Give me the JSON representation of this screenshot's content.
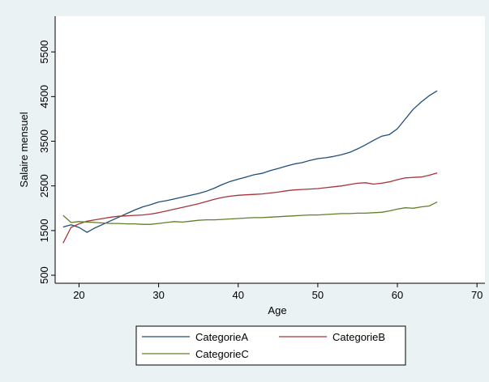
{
  "chart_data": {
    "type": "line",
    "title": "",
    "xlabel": "Age",
    "ylabel": "Salaire mensuel",
    "xlim": [
      17,
      71
    ],
    "ylim": [
      320,
      6300
    ],
    "xticks": [
      20,
      30,
      40,
      50,
      60,
      70
    ],
    "yticks": [
      500,
      1500,
      2500,
      3500,
      4500,
      5500
    ],
    "grid": false,
    "legend_position": "bottom",
    "colors": {
      "background": "#eaf2f3",
      "plot_background": "#ffffff",
      "axis": "#000000"
    },
    "series": [
      {
        "name": "CategorieA",
        "color": "#1f4e79",
        "x": [
          18,
          19,
          20,
          21,
          22,
          23,
          24,
          25,
          26,
          27,
          28,
          29,
          30,
          31,
          32,
          33,
          34,
          35,
          36,
          37,
          38,
          39,
          40,
          41,
          42,
          43,
          44,
          45,
          46,
          47,
          48,
          49,
          50,
          51,
          52,
          53,
          54,
          55,
          56,
          57,
          58,
          59,
          60,
          61,
          62,
          63,
          64,
          65
        ],
        "values": [
          1580,
          1630,
          1570,
          1460,
          1560,
          1640,
          1720,
          1800,
          1880,
          1960,
          2030,
          2080,
          2140,
          2170,
          2210,
          2250,
          2290,
          2330,
          2380,
          2450,
          2530,
          2600,
          2650,
          2700,
          2750,
          2780,
          2840,
          2890,
          2940,
          2990,
          3020,
          3070,
          3110,
          3130,
          3160,
          3200,
          3250,
          3330,
          3420,
          3520,
          3610,
          3650,
          3780,
          4000,
          4220,
          4380,
          4520,
          4630
        ]
      },
      {
        "name": "CategorieB",
        "color": "#a8343a",
        "x": [
          18,
          19,
          20,
          21,
          22,
          23,
          24,
          25,
          26,
          27,
          28,
          29,
          30,
          31,
          32,
          33,
          34,
          35,
          36,
          37,
          38,
          39,
          40,
          41,
          42,
          43,
          44,
          45,
          46,
          47,
          48,
          49,
          50,
          51,
          52,
          53,
          54,
          55,
          56,
          57,
          58,
          59,
          60,
          61,
          62,
          63,
          64,
          65
        ],
        "values": [
          1220,
          1570,
          1650,
          1710,
          1740,
          1770,
          1800,
          1820,
          1830,
          1840,
          1850,
          1870,
          1900,
          1940,
          1980,
          2020,
          2060,
          2100,
          2150,
          2200,
          2240,
          2270,
          2290,
          2300,
          2310,
          2320,
          2340,
          2360,
          2390,
          2410,
          2420,
          2430,
          2440,
          2460,
          2480,
          2500,
          2530,
          2560,
          2570,
          2540,
          2560,
          2590,
          2640,
          2680,
          2690,
          2700,
          2740,
          2790
        ]
      },
      {
        "name": "CategorieC",
        "color": "#5f7f2a",
        "x": [
          18,
          19,
          20,
          21,
          22,
          23,
          24,
          25,
          26,
          27,
          28,
          29,
          30,
          31,
          32,
          33,
          34,
          35,
          36,
          37,
          38,
          39,
          40,
          41,
          42,
          43,
          44,
          45,
          46,
          47,
          48,
          49,
          50,
          51,
          52,
          53,
          54,
          55,
          56,
          57,
          58,
          59,
          60,
          61,
          62,
          63,
          64,
          65
        ],
        "values": [
          1840,
          1680,
          1700,
          1690,
          1680,
          1670,
          1660,
          1660,
          1650,
          1650,
          1640,
          1640,
          1660,
          1680,
          1700,
          1690,
          1710,
          1730,
          1740,
          1740,
          1750,
          1760,
          1770,
          1780,
          1790,
          1790,
          1800,
          1810,
          1820,
          1830,
          1840,
          1850,
          1850,
          1860,
          1870,
          1880,
          1880,
          1890,
          1890,
          1900,
          1910,
          1940,
          1980,
          2010,
          2000,
          2030,
          2050,
          2140
        ]
      }
    ]
  }
}
